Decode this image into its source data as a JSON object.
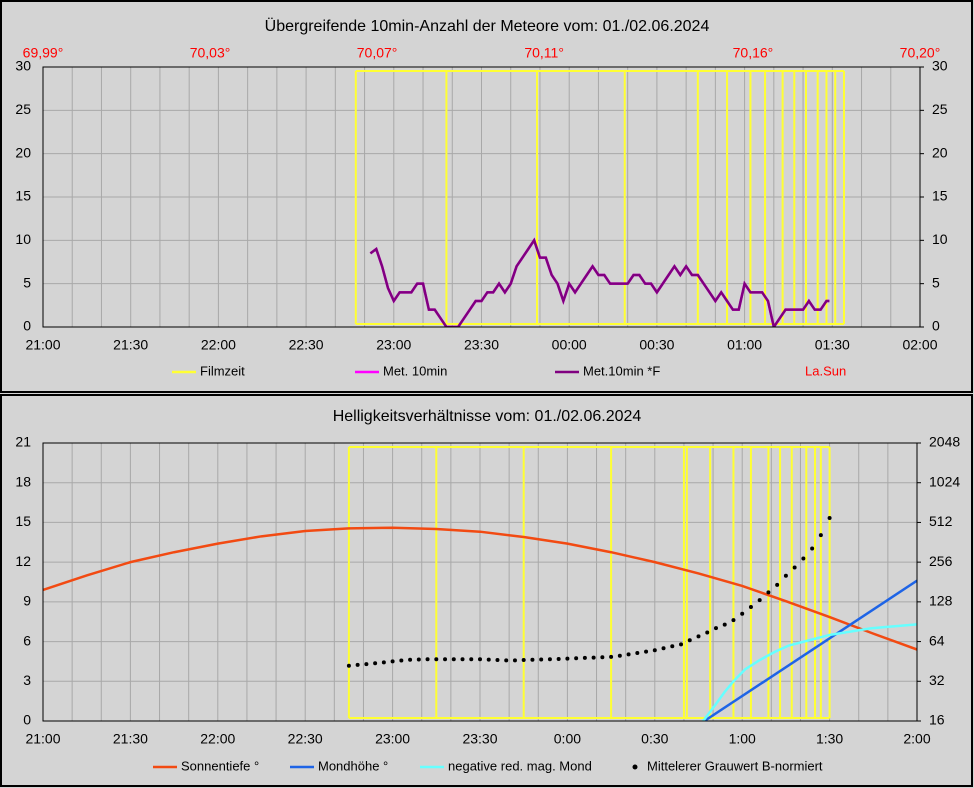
{
  "chart_data": [
    {
      "type": "line",
      "title": "Übergreifende 10min-Anzahl der Meteore vom: 01./02.06.2024",
      "xlim": [
        0,
        300
      ],
      "xticks": [
        {
          "value": 0,
          "label": "21:00"
        },
        {
          "value": 30,
          "label": "21:30"
        },
        {
          "value": 60,
          "label": "22:00"
        },
        {
          "value": 90,
          "label": "22:30"
        },
        {
          "value": 120,
          "label": "23:00"
        },
        {
          "value": 150,
          "label": "23:30"
        },
        {
          "value": 180,
          "label": "00:00"
        },
        {
          "value": 210,
          "label": "00:30"
        },
        {
          "value": 240,
          "label": "01:00"
        },
        {
          "value": 270,
          "label": "01:30"
        },
        {
          "value": 300,
          "label": "02:00"
        }
      ],
      "xminorticks": [
        10,
        20,
        40,
        50,
        70,
        80,
        100,
        110,
        130,
        140,
        160,
        170,
        190,
        200,
        220,
        230,
        250,
        260,
        280,
        290
      ],
      "x2lim": [
        69.99,
        70.2
      ],
      "x2color": "#ff0000",
      "x2label": "La.Sun",
      "x2ticks": [
        {
          "value": 69.99,
          "label": "69,99°"
        },
        {
          "value": 70.03,
          "label": "70,03°"
        },
        {
          "value": 70.07,
          "label": "70,07°"
        },
        {
          "value": 70.11,
          "label": "70,11°"
        },
        {
          "value": 70.16,
          "label": "70,16°"
        },
        {
          "value": 70.2,
          "label": "70,20°"
        }
      ],
      "ylim": [
        0,
        30
      ],
      "yticks": [
        0,
        5,
        10,
        15,
        20,
        25,
        30
      ],
      "y2lim": [
        0,
        30
      ],
      "y2ticks": [
        0,
        5,
        10,
        15,
        20,
        25,
        30
      ],
      "grid": true,
      "series": [
        {
          "name": "Filmzeit",
          "color": "#ffff33",
          "style": "film",
          "x": [
            107,
            138,
            169,
            199,
            224,
            234,
            242,
            247,
            253,
            257,
            261,
            265,
            268,
            271,
            274
          ]
        },
        {
          "name": "Met. 10min",
          "color": "#ff00ff",
          "style": "line",
          "x": [
            112,
            114,
            116,
            118,
            120,
            122,
            124,
            126,
            128,
            130,
            132,
            134,
            136,
            138,
            140,
            142,
            144,
            146,
            148,
            150,
            152,
            154,
            156,
            158,
            160,
            162,
            164,
            166,
            168,
            170,
            172,
            174,
            176,
            178,
            180,
            182,
            184,
            186,
            188,
            190,
            192,
            194,
            196,
            198,
            200,
            202,
            204,
            206,
            208,
            210,
            212,
            214,
            216,
            218,
            220,
            222,
            224,
            226,
            228,
            230,
            232,
            234,
            236,
            238,
            240,
            242,
            244,
            246,
            248,
            250,
            252,
            254,
            256,
            258,
            260,
            262,
            264,
            266,
            268,
            269
          ],
          "values": [
            8.5,
            9,
            7,
            4.5,
            3,
            4,
            4,
            4,
            5,
            5,
            2,
            2,
            1,
            0,
            0,
            0,
            1,
            2,
            3,
            3,
            4,
            4,
            5,
            4,
            5,
            7,
            8,
            9,
            10,
            8,
            8,
            6,
            5,
            3,
            5,
            4,
            5,
            6,
            7,
            6,
            6,
            5,
            5,
            5,
            5,
            6,
            6,
            5,
            5,
            4,
            5,
            6,
            7,
            6,
            7,
            6,
            6,
            5,
            4,
            3,
            4,
            3,
            2,
            2,
            5,
            4,
            4,
            4,
            3,
            0,
            1,
            2,
            2,
            2,
            2,
            3,
            2,
            2,
            3,
            3
          ]
        },
        {
          "name": "Met.10min *F",
          "color": "#800080",
          "style": "line",
          "x": [
            112,
            114,
            116,
            118,
            120,
            122,
            124,
            126,
            128,
            130,
            132,
            134,
            136,
            138,
            140,
            142,
            144,
            146,
            148,
            150,
            152,
            154,
            156,
            158,
            160,
            162,
            164,
            166,
            168,
            170,
            172,
            174,
            176,
            178,
            180,
            182,
            184,
            186,
            188,
            190,
            192,
            194,
            196,
            198,
            200,
            202,
            204,
            206,
            208,
            210,
            212,
            214,
            216,
            218,
            220,
            222,
            224,
            226,
            228,
            230,
            232,
            234,
            236,
            238,
            240,
            242,
            244,
            246,
            248,
            250,
            252,
            254,
            256,
            258,
            260,
            262,
            264,
            266,
            268,
            269
          ],
          "values": [
            8.5,
            9,
            7,
            4.5,
            3,
            4,
            4,
            4,
            5,
            5,
            2,
            2,
            1,
            0,
            0,
            0,
            1,
            2,
            3,
            3,
            4,
            4,
            5,
            4,
            5,
            7,
            8,
            9,
            10,
            8,
            8,
            6,
            5,
            3,
            5,
            4,
            5,
            6,
            7,
            6,
            6,
            5,
            5,
            5,
            5,
            6,
            6,
            5,
            5,
            4,
            5,
            6,
            7,
            6,
            7,
            6,
            6,
            5,
            4,
            3,
            4,
            3,
            2,
            2,
            5,
            4,
            4,
            4,
            3,
            0,
            1,
            2,
            2,
            2,
            2,
            3,
            2,
            2,
            3,
            3
          ]
        }
      ]
    },
    {
      "type": "line",
      "title": "Helligkeitsverhältnisse vom: 01./02.06.2024",
      "xlim": [
        0,
        300
      ],
      "xticks": [
        {
          "value": 0,
          "label": "21:00"
        },
        {
          "value": 30,
          "label": "21:30"
        },
        {
          "value": 60,
          "label": "22:00"
        },
        {
          "value": 90,
          "label": "22:30"
        },
        {
          "value": 120,
          "label": "23:00"
        },
        {
          "value": 150,
          "label": "23:30"
        },
        {
          "value": 180,
          "label": "0:00"
        },
        {
          "value": 210,
          "label": "0:30"
        },
        {
          "value": 240,
          "label": "1:00"
        },
        {
          "value": 270,
          "label": "1:30"
        },
        {
          "value": 300,
          "label": "2:00"
        }
      ],
      "xminorticks": [
        10,
        20,
        40,
        50,
        70,
        80,
        100,
        110,
        130,
        140,
        160,
        170,
        190,
        200,
        220,
        230,
        250,
        260,
        280,
        290
      ],
      "ylim": [
        0,
        21
      ],
      "yticks": [
        0,
        3,
        6,
        9,
        12,
        15,
        18,
        21
      ],
      "y2lim": [
        16,
        2048
      ],
      "y2log": true,
      "y2ticks": [
        16,
        32,
        64,
        128,
        256,
        512,
        1024,
        2048
      ],
      "grid": true,
      "series": [
        {
          "name": "Filmzeit",
          "color": "#ffff33",
          "style": "film",
          "legend": false,
          "x": [
            105,
            135,
            165,
            195,
            220,
            221,
            229,
            237,
            243,
            249,
            253,
            257,
            262,
            265,
            267,
            270
          ]
        },
        {
          "name": "Sonnentiefe °",
          "color": "#f24a12",
          "style": "line",
          "x": [
            0,
            15,
            30,
            45,
            60,
            75,
            90,
            105,
            120,
            135,
            150,
            165,
            180,
            195,
            210,
            225,
            240,
            255,
            270,
            285,
            300
          ],
          "values": [
            9.9,
            11.0,
            12.0,
            12.75,
            13.4,
            13.95,
            14.35,
            14.55,
            14.6,
            14.5,
            14.3,
            13.9,
            13.4,
            12.75,
            12.0,
            11.15,
            10.2,
            9.05,
            7.85,
            6.6,
            5.4
          ]
        },
        {
          "name": "Mondhöhe °",
          "color": "#1e64e6",
          "style": "line",
          "x": [
            227,
            300
          ],
          "values": [
            0,
            10.6
          ]
        },
        {
          "name": "negative red. mag. Mond",
          "color": "#66ffff",
          "style": "line",
          "x": [
            226.6,
            230.7,
            234,
            237,
            241,
            246,
            251,
            256,
            263,
            270,
            284,
            300
          ],
          "values": [
            0,
            1.2,
            2.2,
            3.0,
            3.9,
            4.6,
            5.2,
            5.7,
            6.1,
            6.5,
            7.0,
            7.3
          ]
        },
        {
          "name": "Mittelerer Grauwert B-normiert",
          "color": "#000000",
          "style": "dots",
          "axis": "y2",
          "x": [
            105,
            108,
            111,
            114,
            117,
            120,
            123,
            126,
            129,
            132,
            135,
            138,
            141,
            144,
            147,
            150,
            153,
            156,
            159,
            162,
            165,
            168,
            171,
            174,
            177,
            180,
            183,
            186,
            189,
            192,
            195,
            198,
            201,
            204,
            207,
            210,
            213,
            216,
            219,
            222,
            225,
            228,
            231,
            234,
            237,
            240,
            243,
            246,
            249,
            252,
            255,
            258,
            261,
            264,
            267,
            270
          ],
          "values": [
            42,
            42.6,
            43.2,
            43.8,
            44.5,
            45.3,
            46,
            46.6,
            46.8,
            47,
            47,
            47,
            47,
            47,
            47,
            47,
            46.7,
            46.4,
            46.1,
            46.1,
            46.4,
            46.6,
            46.8,
            47,
            47.2,
            47.5,
            47.8,
            48.1,
            48.4,
            48.7,
            49,
            50,
            51.2,
            52.4,
            53.7,
            55,
            57,
            59,
            61,
            65.5,
            70,
            75,
            81,
            86,
            93,
            104,
            117,
            132,
            151,
            172,
            202,
            233,
            273,
            325,
            410,
            553
          ]
        }
      ]
    }
  ]
}
